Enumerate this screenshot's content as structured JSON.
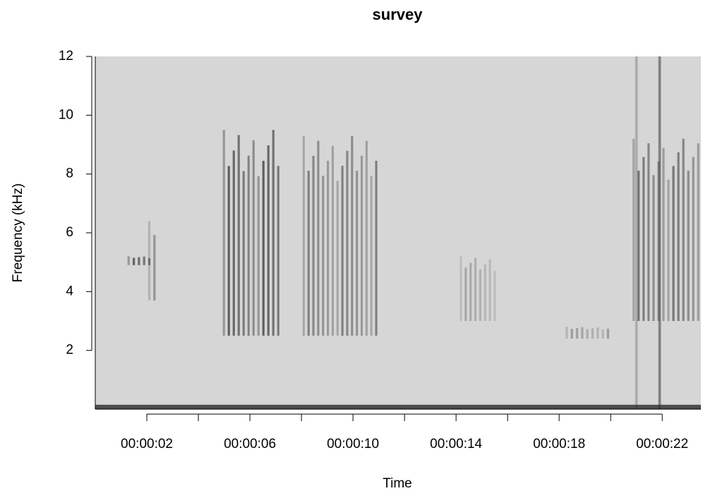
{
  "chart_data": {
    "type": "spectrogram",
    "title": "survey",
    "xlabel": "Time",
    "ylabel": "Frequency (kHz)",
    "xlim": [
      0,
      23.5
    ],
    "ylim": [
      0,
      12
    ],
    "xticks": [
      {
        "value": 2,
        "label": "00:00:02"
      },
      {
        "value": 4,
        "label": null
      },
      {
        "value": 6,
        "label": "00:00:06"
      },
      {
        "value": 8,
        "label": null
      },
      {
        "value": 10,
        "label": "00:00:10"
      },
      {
        "value": 12,
        "label": null
      },
      {
        "value": 14,
        "label": "00:00:14"
      },
      {
        "value": 16,
        "label": null
      },
      {
        "value": 18,
        "label": "00:00:18"
      },
      {
        "value": 20,
        "label": null
      },
      {
        "value": 22,
        "label": "00:00:22"
      }
    ],
    "yticks": [
      2,
      4,
      6,
      8,
      10,
      12
    ],
    "background": "#d6d6d6",
    "color": "#2a2a2a",
    "events": [
      {
        "t0": 1.2,
        "t1": 2.2,
        "f0": 4.9,
        "f1": 5.2,
        "intensity": 0.7
      },
      {
        "t0": 2.0,
        "t1": 2.4,
        "f0": 3.7,
        "f1": 6.4,
        "intensity": 0.4
      },
      {
        "t0": 4.9,
        "t1": 7.2,
        "f0": 2.5,
        "f1": 9.5,
        "intensity": 0.75
      },
      {
        "t0": 8.0,
        "t1": 11.0,
        "f0": 2.5,
        "f1": 9.3,
        "intensity": 0.55
      },
      {
        "t0": 14.1,
        "t1": 15.6,
        "f0": 3.0,
        "f1": 5.2,
        "intensity": 0.3
      },
      {
        "t0": 18.2,
        "t1": 20.0,
        "f0": 2.4,
        "f1": 2.8,
        "intensity": 0.35
      },
      {
        "t0": 20.8,
        "t1": 23.5,
        "f0": 3.0,
        "f1": 9.2,
        "intensity": 0.6
      },
      {
        "t0": 20.95,
        "t1": 21.05,
        "f0": 0,
        "f1": 12,
        "intensity": 0.25
      },
      {
        "t0": 21.85,
        "t1": 21.95,
        "f0": 0,
        "f1": 12,
        "intensity": 0.5
      },
      {
        "t0": 0,
        "t1": 23.5,
        "f0": 0,
        "f1": 0.15,
        "intensity": 0.8
      }
    ]
  }
}
